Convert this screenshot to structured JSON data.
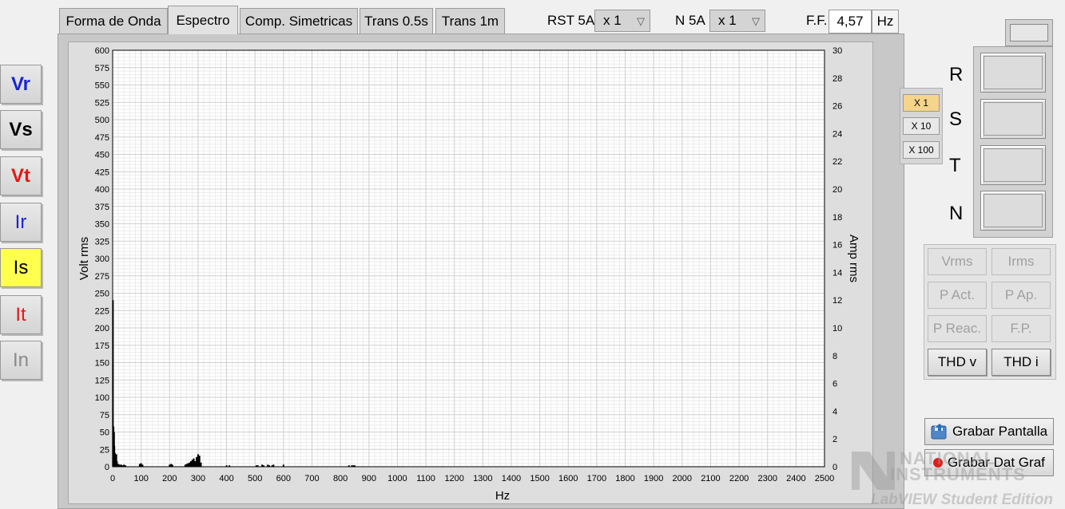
{
  "channels": [
    {
      "label": "Vr",
      "color": "#1a23d6",
      "bold": true
    },
    {
      "label": "Vs",
      "color": "#000000",
      "bold": true
    },
    {
      "label": "Vt",
      "color": "#e01818",
      "bold": true
    },
    {
      "label": "Ir",
      "color": "#1a23d6",
      "bold": false
    },
    {
      "label": "Is",
      "color": "#000000",
      "bold": false,
      "active": true
    },
    {
      "label": "It",
      "color": "#e01818",
      "bold": false
    },
    {
      "label": "In",
      "color": "#8a8a8a",
      "bold": false
    }
  ],
  "tabs": [
    {
      "label": "Forma de Onda"
    },
    {
      "label": "Espectro",
      "active": true
    },
    {
      "label": "Comp. Simetricas"
    },
    {
      "label": "Trans 0.5s"
    },
    {
      "label": "Trans 1m"
    }
  ],
  "toolbar": {
    "rst_label": "RST 5A",
    "rst_value": "x 1",
    "n_label": "N 5A",
    "n_value": "x 1",
    "ff_label": "F.F.",
    "ff_value": "4,57",
    "ff_unit": "Hz"
  },
  "scale_buttons": [
    {
      "label": "X 1",
      "active": true
    },
    {
      "label": "X 10"
    },
    {
      "label": "X 100"
    }
  ],
  "phases": [
    "R",
    "S",
    "T",
    "N"
  ],
  "measures": [
    {
      "label": "Vrms",
      "enabled": false
    },
    {
      "label": "Irms",
      "enabled": false
    },
    {
      "label": "P Act.",
      "enabled": false
    },
    {
      "label": "P Ap.",
      "enabled": false
    },
    {
      "label": "P Reac.",
      "enabled": false
    },
    {
      "label": "F.P.",
      "enabled": false
    },
    {
      "label": "THD v",
      "enabled": true
    },
    {
      "label": "THD i",
      "enabled": true
    }
  ],
  "actions": {
    "save_screen": "Grabar Pantalla",
    "save_data": "Grabar Dat Graf"
  },
  "watermark": {
    "line1": "NATIONAL",
    "line2": "INSTRUMENTS",
    "line3": "LabVIEW Student Edition"
  },
  "chart_data": {
    "type": "bar",
    "xlabel": "Hz",
    "ylabel": "Volt rms",
    "y2label": "Amp rms",
    "xlim": [
      0,
      2500
    ],
    "ylim": [
      0,
      600
    ],
    "y2lim": [
      0,
      30
    ],
    "xticks": [
      0,
      100,
      200,
      300,
      400,
      500,
      600,
      700,
      800,
      900,
      1000,
      1100,
      1200,
      1300,
      1400,
      1500,
      1600,
      1700,
      1800,
      1900,
      2000,
      2100,
      2200,
      2300,
      2400,
      2500
    ],
    "yticks": [
      0,
      25,
      50,
      75,
      100,
      125,
      150,
      175,
      200,
      225,
      250,
      275,
      300,
      325,
      350,
      375,
      400,
      425,
      450,
      475,
      500,
      525,
      550,
      575,
      600
    ],
    "y2ticks": [
      0,
      2,
      4,
      6,
      8,
      10,
      12,
      14,
      16,
      18,
      20,
      22,
      24,
      26,
      28,
      30
    ],
    "grid": true,
    "series": [
      {
        "x": [
          1,
          3,
          5,
          6,
          8,
          10,
          13,
          15,
          20,
          25,
          30,
          35,
          40,
          45,
          95,
          100,
          105,
          200,
          205,
          210,
          255,
          260,
          265,
          270,
          275,
          280,
          285,
          290,
          295,
          300,
          305,
          310,
          400,
          410,
          505,
          510,
          525,
          530,
          545,
          550,
          560,
          565,
          600,
          830,
          840,
          845,
          850
        ],
        "values": [
          240,
          58,
          50,
          30,
          20,
          10,
          18,
          8,
          4,
          3,
          3,
          2,
          3,
          2,
          4,
          5,
          3,
          3,
          4,
          3,
          3,
          4,
          5,
          6,
          8,
          10,
          12,
          8,
          14,
          18,
          16,
          6,
          2,
          2,
          2,
          2,
          3,
          2,
          3,
          2,
          2,
          3,
          3,
          2,
          2,
          2,
          2
        ]
      }
    ]
  }
}
